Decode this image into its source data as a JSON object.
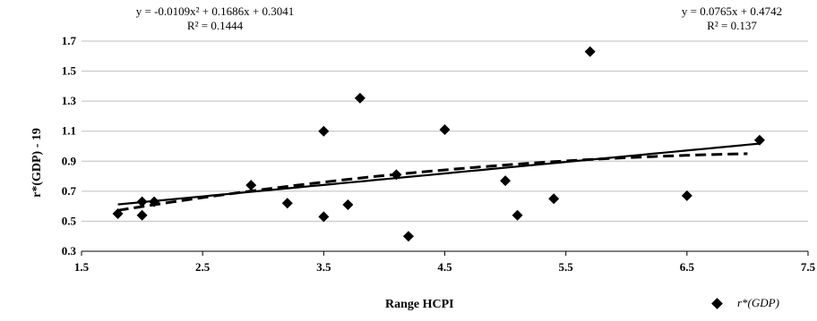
{
  "chart_data": {
    "type": "scatter",
    "xlabel": "Range HCPI",
    "ylabel": "r*(GDP) - 19",
    "xlim": [
      1.5,
      7.5
    ],
    "ylim": [
      0.3,
      1.7
    ],
    "xticks": [
      "1.5",
      "2.5",
      "3.5",
      "4.5",
      "5.5",
      "6.5",
      "7.5"
    ],
    "yticks": [
      "0.3",
      "0.5",
      "0.7",
      "0.9",
      "1.1",
      "1.3",
      "1.5",
      "1.7"
    ],
    "grid": "horizontal",
    "legend_position": "bottom-right",
    "series": [
      {
        "name": "r*(GDP)",
        "marker": "diamond",
        "color": "#000000",
        "x": [
          1.8,
          2.0,
          2.0,
          2.1,
          2.9,
          3.2,
          3.5,
          3.5,
          3.7,
          3.8,
          4.1,
          4.2,
          4.5,
          5.0,
          5.1,
          5.4,
          5.7,
          6.5,
          7.1
        ],
        "y": [
          0.55,
          0.63,
          0.54,
          0.63,
          0.74,
          0.62,
          1.1,
          0.53,
          0.61,
          1.32,
          0.81,
          0.4,
          1.11,
          0.77,
          0.54,
          0.65,
          1.63,
          0.67,
          1.04
        ]
      }
    ],
    "trendlines": [
      {
        "kind": "polynomial",
        "style": "dashed",
        "coefficients": [
          -0.0109,
          0.1686,
          0.3041
        ],
        "equation": "y = -0.0109x² + 0.1686x + 0.3041",
        "r2_text": "R² = 0.1444",
        "x_range": [
          1.8,
          7.0
        ]
      },
      {
        "kind": "linear",
        "style": "solid",
        "coefficients": [
          0.0765,
          0.4742
        ],
        "equation": "y = 0.0765x + 0.4742",
        "r2_text": "R² = 0.137",
        "x_range": [
          1.8,
          7.1
        ]
      }
    ],
    "legend": {
      "label": "r*(GDP)"
    }
  }
}
